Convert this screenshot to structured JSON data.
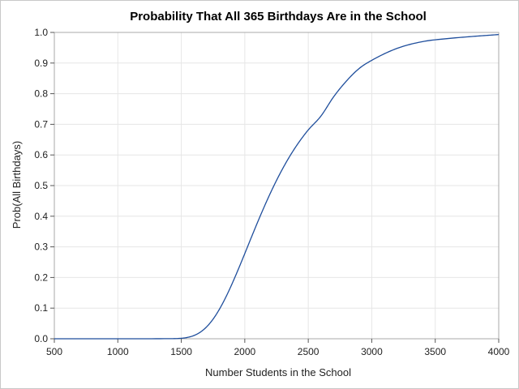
{
  "chart_data": {
    "type": "line",
    "title": "Probability That All 365 Birthdays Are in the School",
    "xlabel": "Number Students in the School",
    "ylabel": "Prob(All Birthdays)",
    "xlim": [
      500,
      4000
    ],
    "ylim": [
      0.0,
      1.0
    ],
    "x_ticks": [
      "500",
      "1000",
      "1500",
      "2000",
      "2500",
      "3000",
      "3500",
      "4000"
    ],
    "x_tick_values": [
      500,
      1000,
      1500,
      2000,
      2500,
      3000,
      3500,
      4000
    ],
    "y_ticks": [
      "0.0",
      "0.1",
      "0.2",
      "0.3",
      "0.4",
      "0.5",
      "0.6",
      "0.7",
      "0.8",
      "0.9",
      "1.0"
    ],
    "y_tick_values": [
      0.0,
      0.1,
      0.2,
      0.3,
      0.4,
      0.5,
      0.6,
      0.7,
      0.8,
      0.9,
      1.0
    ],
    "grid": true,
    "series": [
      {
        "color": "#1f4e9c",
        "x": [
          500,
          1000,
          1400,
          1500,
          1550,
          1600,
          1650,
          1700,
          1750,
          1800,
          1850,
          1900,
          1950,
          2000,
          2050,
          2100,
          2150,
          2200,
          2250,
          2300,
          2350,
          2400,
          2450,
          2500,
          2600,
          2700,
          2800,
          2900,
          3000,
          3200,
          3400,
          3600,
          3800,
          4000
        ],
        "y": [
          0.0,
          0.0,
          0.0003,
          0.0016,
          0.0045,
          0.0106,
          0.0216,
          0.0391,
          0.0639,
          0.0962,
          0.1352,
          0.1796,
          0.2278,
          0.2781,
          0.3292,
          0.3795,
          0.428,
          0.474,
          0.517,
          0.5566,
          0.5928,
          0.6256,
          0.6551,
          0.6817,
          0.7271,
          0.79,
          0.841,
          0.882,
          0.909,
          0.948,
          0.97,
          0.98,
          0.987,
          0.993
        ]
      }
    ]
  }
}
